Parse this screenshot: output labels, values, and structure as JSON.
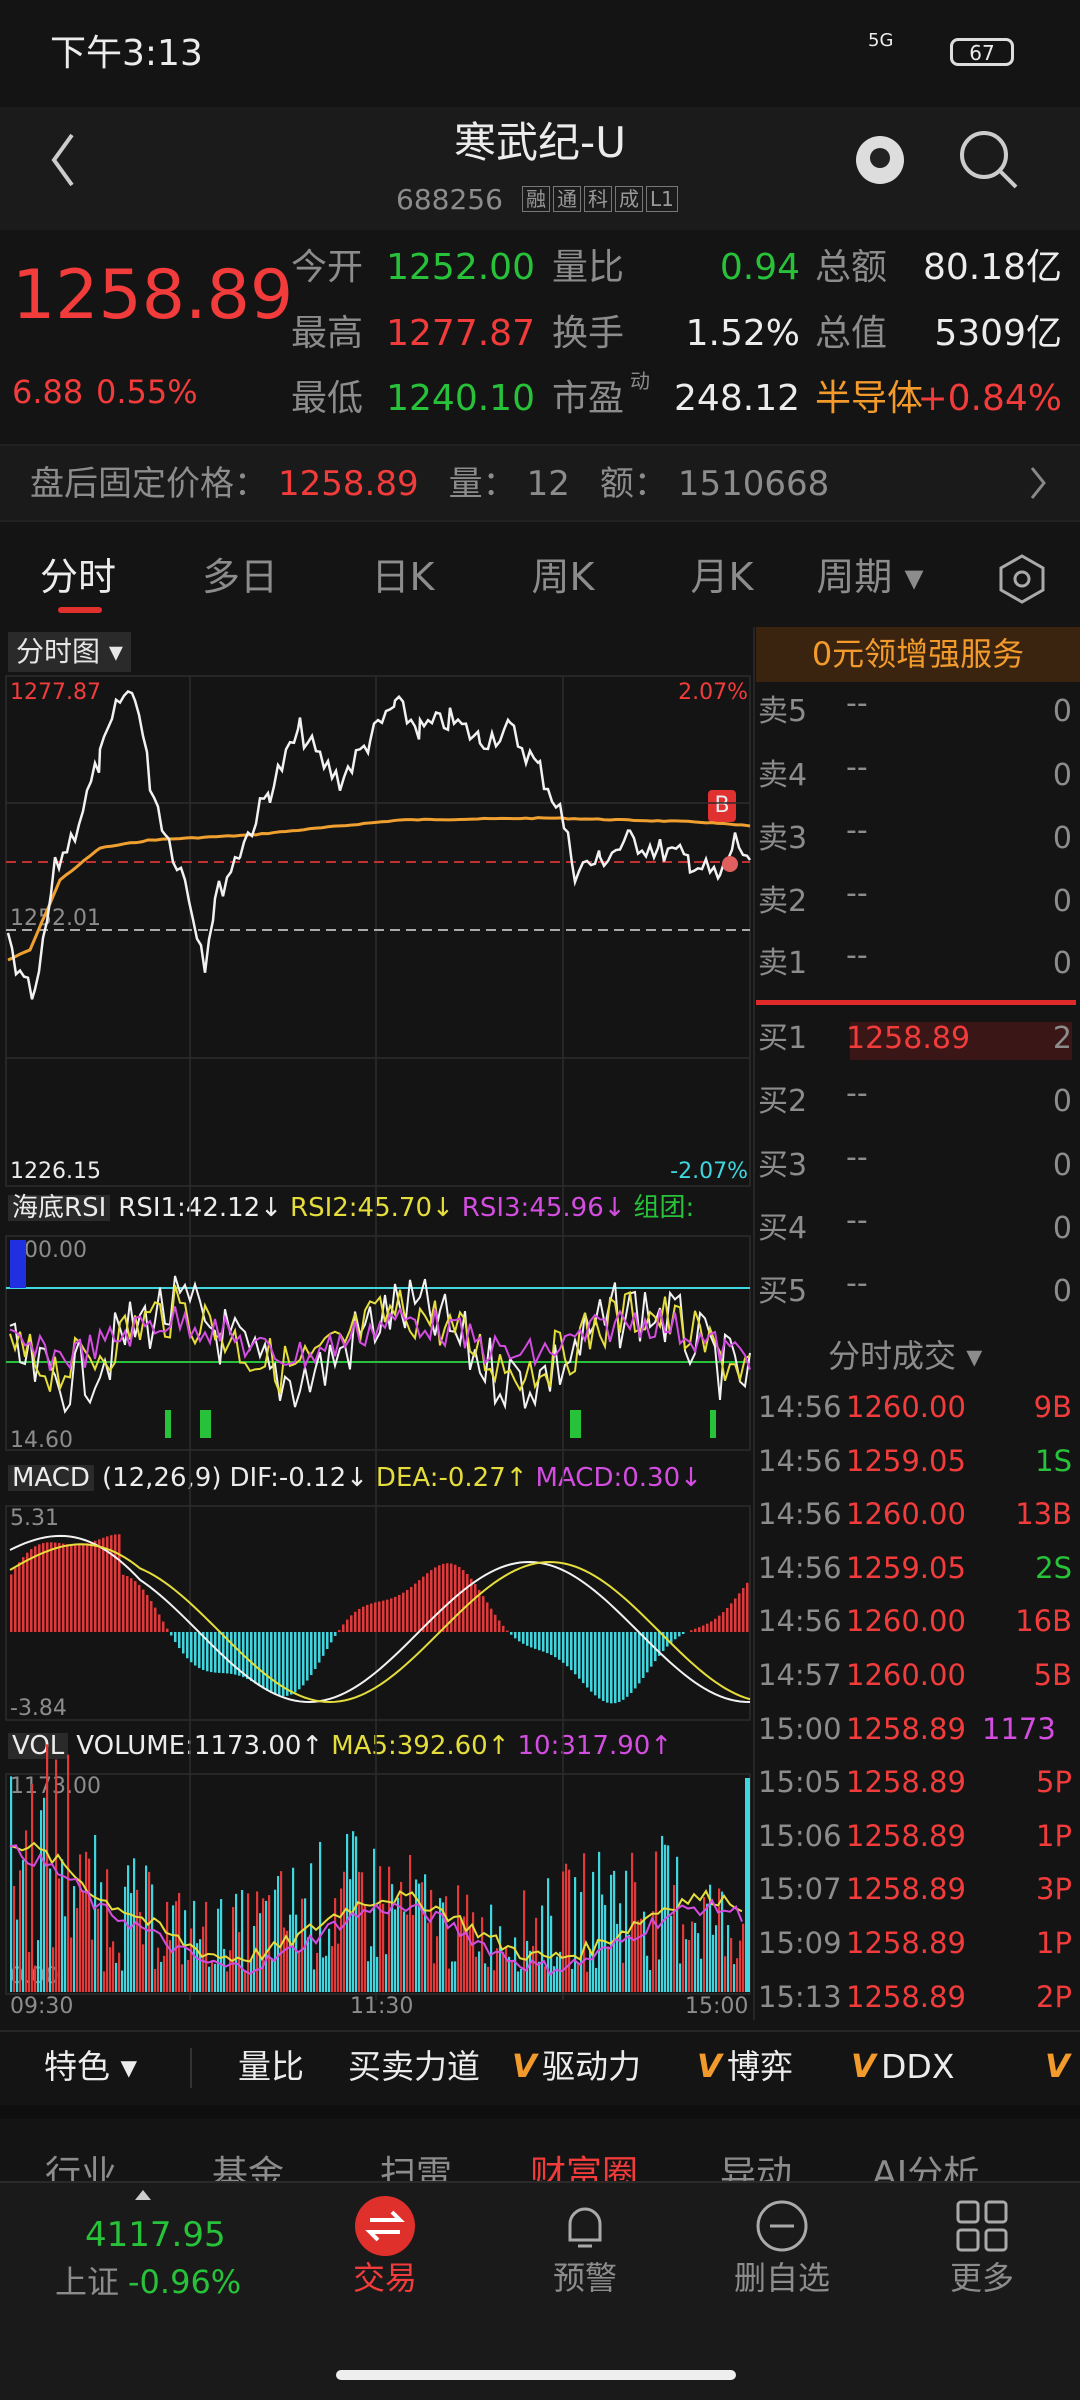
{
  "status_bar": {
    "time": "下午3:13",
    "network": "5G",
    "battery": "67"
  },
  "header": {
    "title": "寒武纪-U",
    "code": "688256",
    "badges": [
      "融",
      "通",
      "科",
      "成",
      "L1"
    ]
  },
  "quote": {
    "price": "1258.89",
    "change": "6.88",
    "change_pct": "0.55%",
    "fields": [
      {
        "label": "今开",
        "value": "1252.00"
      },
      {
        "label": "量比",
        "value": "0.94"
      },
      {
        "label": "总额",
        "value": "80.18亿"
      },
      {
        "label": "最高",
        "value": "1277.87"
      },
      {
        "label": "换手",
        "value": "1.52%"
      },
      {
        "label": "总值",
        "value": "5309亿"
      },
      {
        "label": "最低",
        "value": "1240.10"
      },
      {
        "label": "市盈",
        "sup": "动",
        "value": "248.12"
      },
      {
        "label": "半导体",
        "value": "+0.84%"
      }
    ]
  },
  "after_hours": {
    "label": "盘后固定价格：",
    "price": "1258.89",
    "volume_label": "量：",
    "volume": "12",
    "amount_label": "额：",
    "amount": "1510668"
  },
  "tabs": [
    "分时",
    "多日",
    "日K",
    "周K",
    "月K",
    "周期"
  ],
  "chart": {
    "selector": "分时图",
    "high": "1277.87",
    "high_pct": "2.07%",
    "open": "1252.01",
    "low": "1226.15",
    "low_pct": "-2.07%",
    "marker": "B",
    "rsi": {
      "name": "海底RSI",
      "rsi1": "RSI1:42.12↓",
      "rsi2": "RSI2:45.70↓",
      "rsi3": "RSI3:45.96↓",
      "extra": "组团:",
      "top": "100.00",
      "bottom": "14.60"
    },
    "macd": {
      "name": "MACD",
      "params": "(12,26,9)",
      "dif": "DIF:-0.12↓",
      "dea": "DEA:-0.27↑",
      "macd": "MACD:0.30↓",
      "top": "5.31",
      "bottom": "-3.84"
    },
    "vol": {
      "name": "VOL",
      "volume": "VOLUME:1173.00↑",
      "ma5": "MA5:392.60↑",
      "ma10": "10:317.90↑",
      "top": "1173.00",
      "bottom": "0.00"
    },
    "times": [
      "09:30",
      "11:30",
      "15:00"
    ]
  },
  "side_panel": {
    "promo": "0元领增强服务",
    "asks": [
      {
        "label": "卖5",
        "price": "--",
        "volume": "0"
      },
      {
        "label": "卖4",
        "price": "--",
        "volume": "0"
      },
      {
        "label": "卖3",
        "price": "--",
        "volume": "0"
      },
      {
        "label": "卖2",
        "price": "--",
        "volume": "0"
      },
      {
        "label": "卖1",
        "price": "--",
        "volume": "0"
      }
    ],
    "bids": [
      {
        "label": "买1",
        "price": "1258.89",
        "volume": "2"
      },
      {
        "label": "买2",
        "price": "--",
        "volume": "0"
      },
      {
        "label": "买3",
        "price": "--",
        "volume": "0"
      },
      {
        "label": "买4",
        "price": "--",
        "volume": "0"
      },
      {
        "label": "买5",
        "price": "--",
        "volume": "0"
      }
    ],
    "trades_title": "分时成交",
    "trades": [
      [
        "14:56",
        "1260.00",
        "9B"
      ],
      [
        "14:56",
        "1259.05",
        "1S"
      ],
      [
        "14:56",
        "1260.00",
        "13B"
      ],
      [
        "14:56",
        "1259.05",
        "2S"
      ],
      [
        "14:56",
        "1260.00",
        "16B"
      ],
      [
        "14:57",
        "1260.00",
        "5B"
      ],
      [
        "15:00",
        "1258.89",
        "1173"
      ],
      [
        "15:05",
        "1258.89",
        "5P"
      ],
      [
        "15:06",
        "1258.89",
        "1P"
      ],
      [
        "15:07",
        "1258.89",
        "3P"
      ],
      [
        "15:09",
        "1258.89",
        "1P"
      ],
      [
        "15:13",
        "1258.89",
        "2P"
      ]
    ]
  },
  "toolbar": {
    "first": "特色",
    "items": [
      "量比",
      "买卖力道",
      "驱动力",
      "博弈",
      "DDX"
    ],
    "v_mark": "V"
  },
  "sub_tabs": [
    "行业",
    "基金",
    "扫雷",
    "财富圈",
    "异动",
    "AI分析"
  ],
  "bottom_nav": {
    "index_value": "4117.95",
    "index_name": "上证",
    "index_change": "-0.96%",
    "items": [
      "交易",
      "预警",
      "删自选",
      "更多"
    ]
  }
}
